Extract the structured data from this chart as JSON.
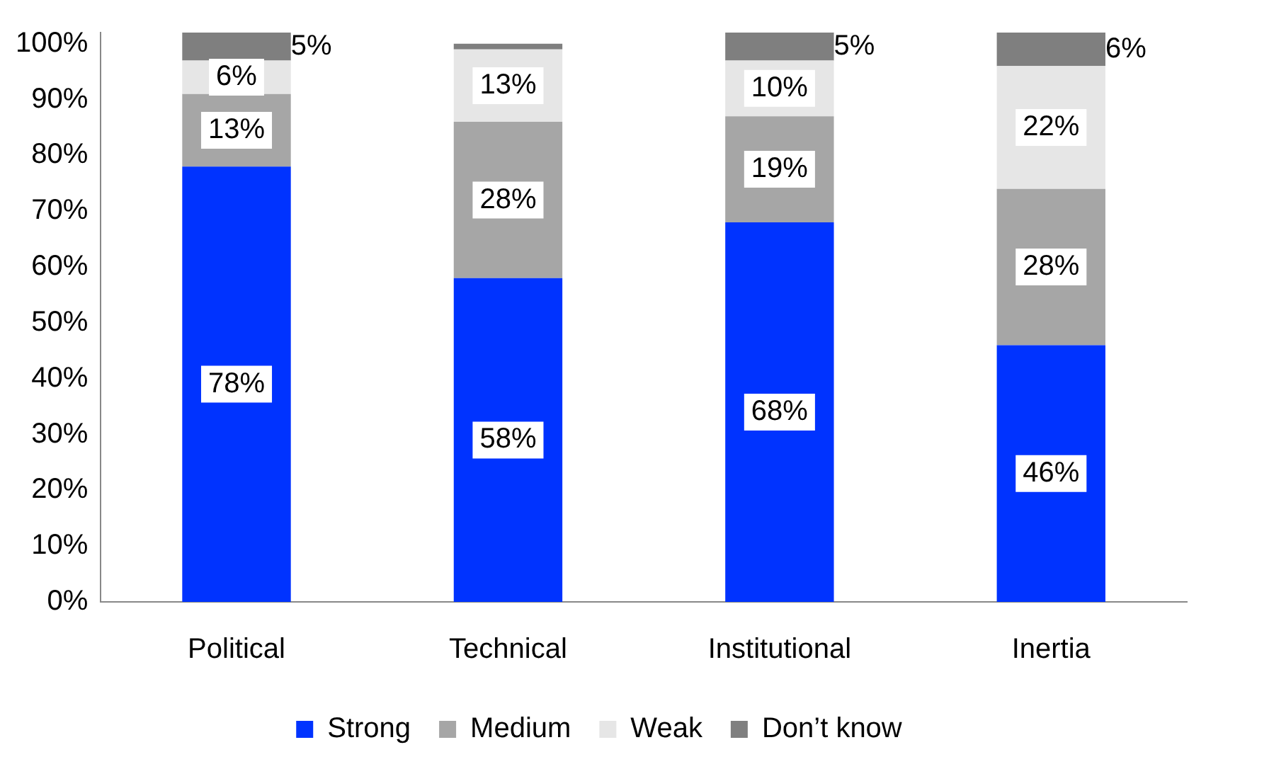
{
  "chart_data": {
    "type": "bar",
    "stacked": true,
    "categories": [
      "Political",
      "Technical",
      "Institutional",
      "Inertia"
    ],
    "ylim": [
      0,
      102
    ],
    "yticks": [
      {
        "value": 0,
        "label": "0%"
      },
      {
        "value": 10,
        "label": "10%"
      },
      {
        "value": 20,
        "label": "20%"
      },
      {
        "value": 30,
        "label": "30%"
      },
      {
        "value": 40,
        "label": "40%"
      },
      {
        "value": 50,
        "label": "50%"
      },
      {
        "value": 60,
        "label": "60%"
      },
      {
        "value": 70,
        "label": "70%"
      },
      {
        "value": 80,
        "label": "80%"
      },
      {
        "value": 90,
        "label": "90%"
      },
      {
        "value": 100,
        "label": "100%"
      }
    ],
    "grid": false,
    "legend": "bottom",
    "series": [
      {
        "name": "Strong",
        "color": "#0033ff",
        "values": [
          78,
          58,
          68,
          46
        ],
        "value_labels": [
          "78%",
          "58%",
          "68%",
          "46%"
        ]
      },
      {
        "name": "Medium",
        "color": "#a6a6a6",
        "values": [
          13,
          28,
          19,
          28
        ],
        "value_labels": [
          "13%",
          "28%",
          "19%",
          "28%"
        ]
      },
      {
        "name": "Weak",
        "color": "#e6e6e6",
        "values": [
          6,
          13,
          10,
          22
        ],
        "value_labels": [
          "6%",
          "13%",
          "10%",
          "22%"
        ]
      },
      {
        "name": "Don’t know",
        "color": "#7f7f7f",
        "values": [
          5,
          1,
          5,
          6
        ],
        "value_labels": [
          "5%",
          null,
          "5%",
          "6%"
        ]
      }
    ]
  }
}
